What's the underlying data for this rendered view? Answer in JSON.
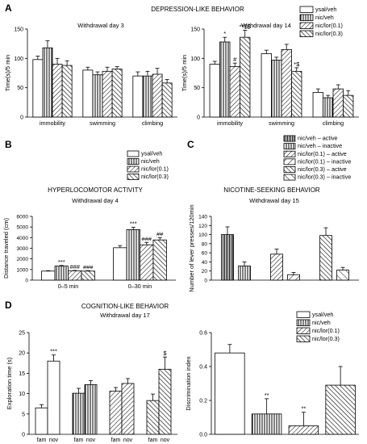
{
  "panel_labels": {
    "a": "A",
    "b": "B",
    "c": "C",
    "d": "D"
  },
  "section_titles": {
    "a": "DEPRESSION-LIKE BEHAVIOR",
    "b": "HYPERLOCOMOTOR ACTIVITY",
    "c": "NICOTINE-SEEKING BEHAVIOR",
    "d": "COGNITION-LIKE BEHAVIOR"
  },
  "colors": {
    "ink": "#000000",
    "bar_fill": "#ffffff"
  },
  "chart_data": [
    {
      "id": "a_left",
      "type": "bar",
      "title": "Withdrawal day 3",
      "ylabel": "Time(s)/5 min",
      "ylim": [
        0,
        150
      ],
      "yticks": [
        0,
        50,
        100,
        150
      ],
      "categories": [
        "immobility",
        "swimming",
        "climbing"
      ],
      "series": [
        {
          "name": "ysal/veh",
          "values": [
            98,
            80,
            70
          ],
          "errors": [
            6,
            5,
            7
          ]
        },
        {
          "name": "nic/veh",
          "values": [
            118,
            72,
            70
          ],
          "errors": [
            12,
            5,
            8
          ]
        },
        {
          "name": "nic/lor(0.1)",
          "values": [
            90,
            78,
            73
          ],
          "errors": [
            10,
            7,
            10
          ]
        },
        {
          "name": "nic/lor(0.3)",
          "values": [
            88,
            82,
            58
          ],
          "errors": [
            8,
            4,
            6
          ]
        }
      ],
      "annotations": []
    },
    {
      "id": "a_right",
      "type": "bar",
      "title": "Withdrawal day 14",
      "ylabel": "Time(s)/5 min",
      "ylim": [
        0,
        150
      ],
      "yticks": [
        0,
        50,
        100,
        150
      ],
      "categories": [
        "immobility",
        "swimming",
        "climbing"
      ],
      "series": [
        {
          "name": "ysal/veh",
          "values": [
            90,
            108,
            42
          ],
          "errors": [
            5,
            6,
            6
          ]
        },
        {
          "name": "nic/veh",
          "values": [
            128,
            97,
            33
          ],
          "errors": [
            8,
            5,
            4
          ]
        },
        {
          "name": "nic/lor(0.1)",
          "values": [
            86,
            115,
            48
          ],
          "errors": [
            6,
            9,
            7
          ]
        },
        {
          "name": "nic/lor(0.3)",
          "values": [
            136,
            78,
            37
          ],
          "errors": [
            12,
            6,
            8
          ]
        }
      ],
      "annotations": [
        {
          "category": 0,
          "series": 1,
          "text": "*"
        },
        {
          "category": 0,
          "series": 2,
          "text": "#"
        },
        {
          "category": 0,
          "series": 3,
          "text": "**$$"
        },
        {
          "category": 1,
          "series": 3,
          "text": "*$"
        }
      ],
      "legend": [
        "ysal/veh",
        "nic/veh",
        "nic/lor(0.1)",
        "nic/lor(0.3)"
      ]
    },
    {
      "id": "b",
      "type": "bar",
      "title": "Withdrawal day 4",
      "ylabel": "Distance traveled (cm)",
      "ylim": [
        0,
        6000
      ],
      "yticks": [
        0,
        1000,
        2000,
        3000,
        4000,
        5000,
        6000
      ],
      "categories": [
        "0–5 min",
        "0–30 min"
      ],
      "series": [
        {
          "name": "ysal/veh",
          "values": [
            850,
            3050
          ],
          "errors": [
            40,
            200
          ]
        },
        {
          "name": "nic/veh",
          "values": [
            1320,
            4750
          ],
          "errors": [
            60,
            230
          ]
        },
        {
          "name": "nic/lor(0.1)",
          "values": [
            870,
            3320
          ],
          "errors": [
            40,
            230
          ]
        },
        {
          "name": "nic/lor(0.3)",
          "values": [
            850,
            3780
          ],
          "errors": [
            40,
            210
          ]
        }
      ],
      "annotations": [
        {
          "category": 0,
          "series": 1,
          "text": "***"
        },
        {
          "category": 0,
          "series": 2,
          "text": "###"
        },
        {
          "category": 0,
          "series": 3,
          "text": "###"
        },
        {
          "category": 1,
          "series": 1,
          "text": "***"
        },
        {
          "category": 1,
          "series": 2,
          "text": "###"
        },
        {
          "category": 1,
          "series": 3,
          "text": "##"
        }
      ],
      "legend": [
        "ysal/veh",
        "nic/veh",
        "nic/lor(0.1)",
        "nic/lor(0.3)"
      ]
    },
    {
      "id": "c",
      "type": "bar",
      "title": "Withdrawal day 15",
      "ylabel": "Number of lever presses/120min",
      "ylim": [
        0,
        140
      ],
      "yticks": [
        0,
        20,
        40,
        60,
        80,
        100,
        120,
        140
      ],
      "categories": [
        "nic/veh",
        "nic/lor(0.1)",
        "nic/lor(0.3)"
      ],
      "series": [
        {
          "name": "active",
          "values": [
            100,
            57,
            98
          ],
          "errors": [
            17,
            11,
            17
          ]
        },
        {
          "name": "inactive",
          "values": [
            31,
            12,
            22
          ],
          "errors": [
            9,
            5,
            6
          ]
        }
      ],
      "annotations": [],
      "legend": [
        "nic/veh – active",
        "nic/veh – inactive",
        "nic/lor(0.1) – active",
        "nic/lor(0.1) – inactive",
        "nic/lor(0.3) – active",
        "nic/lor(0.3) – inactive"
      ]
    },
    {
      "id": "d_left",
      "type": "bar",
      "title": "Withdrawal day 17",
      "ylabel": "Exploration time (s)",
      "ylim": [
        0,
        25
      ],
      "yticks": [
        0,
        5,
        10,
        15,
        20,
        25
      ],
      "categories": [
        "ysal/veh",
        "nic/veh",
        "nic/lor(0.1)",
        "nic/lor(0.3)"
      ],
      "bar_labels": [
        "fam",
        "nov"
      ],
      "series": [
        {
          "name": "fam",
          "values": [
            6.5,
            10.1,
            10.6,
            8.3
          ],
          "errors": [
            0.8,
            1.2,
            0.9,
            1.6
          ]
        },
        {
          "name": "nov",
          "values": [
            18.0,
            12.2,
            12.5,
            16.0
          ],
          "errors": [
            1.5,
            1.0,
            1.2,
            3.0
          ]
        }
      ],
      "annotations": [
        {
          "category": 0,
          "series": 1,
          "text": "***"
        },
        {
          "category": 3,
          "series": 1,
          "text": "$"
        }
      ]
    },
    {
      "id": "d_right",
      "type": "bar",
      "ylabel": "Discrimination index",
      "ylim": [
        0,
        0.6
      ],
      "yticks": [
        0.0,
        0.2,
        0.4,
        0.6
      ],
      "categories": [
        "ysal/veh",
        "nic/veh",
        "nic/lor(0.1)",
        "nic/lor(0.3)"
      ],
      "values": [
        0.48,
        0.12,
        0.05,
        0.29
      ],
      "errors": [
        0.05,
        0.09,
        0.08,
        0.11
      ],
      "annotations": [
        {
          "category": 1,
          "text": "**"
        },
        {
          "category": 2,
          "text": "**"
        }
      ],
      "legend": [
        "ysal/veh",
        "nic/veh",
        "nic/lor(0.1)",
        "nic/lor(0.3)"
      ]
    }
  ]
}
